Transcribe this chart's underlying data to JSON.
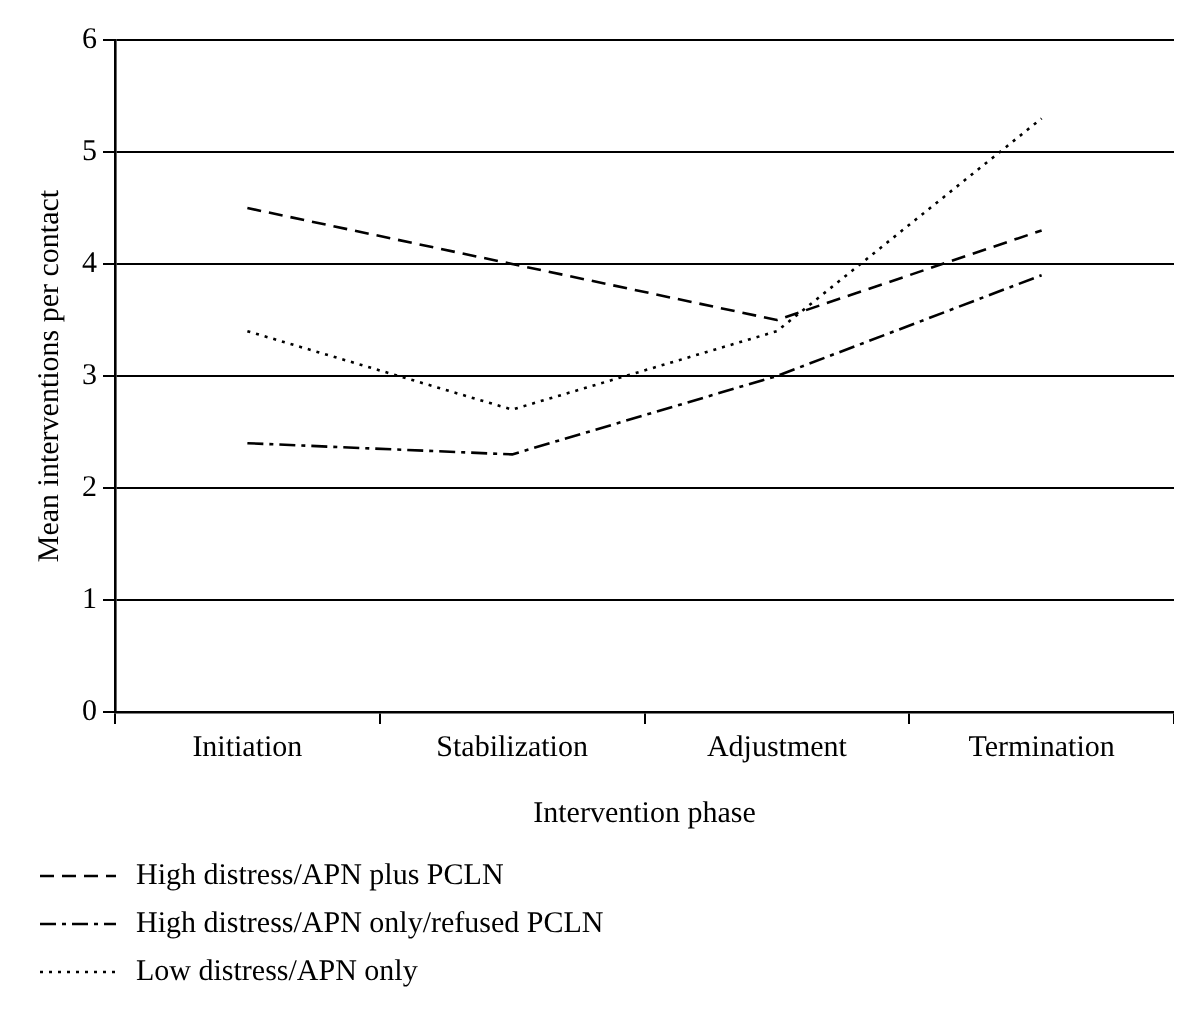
{
  "chart_data": {
    "type": "line",
    "xlabel": "Intervention phase",
    "ylabel": "Mean interventions per contact",
    "categories": [
      "Initiation",
      "Stabilization",
      "Adjustment",
      "Termination"
    ],
    "series": [
      {
        "name": "High distress/APN plus PCLN",
        "color": "#000000",
        "line_style": "dashed",
        "values": [
          4.5,
          4.0,
          3.5,
          4.3
        ]
      },
      {
        "name": "High distress/APN only/refused PCLN",
        "color": "#000000",
        "line_style": "dashdot",
        "values": [
          2.4,
          2.3,
          3.0,
          3.9
        ]
      },
      {
        "name": "Low distress/APN only",
        "color": "#000000",
        "line_style": "dotted",
        "values": [
          3.4,
          2.7,
          3.4,
          5.3
        ]
      }
    ],
    "ylim": [
      0,
      6
    ],
    "yticks": [
      0,
      1,
      2,
      3,
      4,
      5,
      6
    ],
    "grid": "y",
    "legend": "bottom",
    "marker": "none"
  }
}
